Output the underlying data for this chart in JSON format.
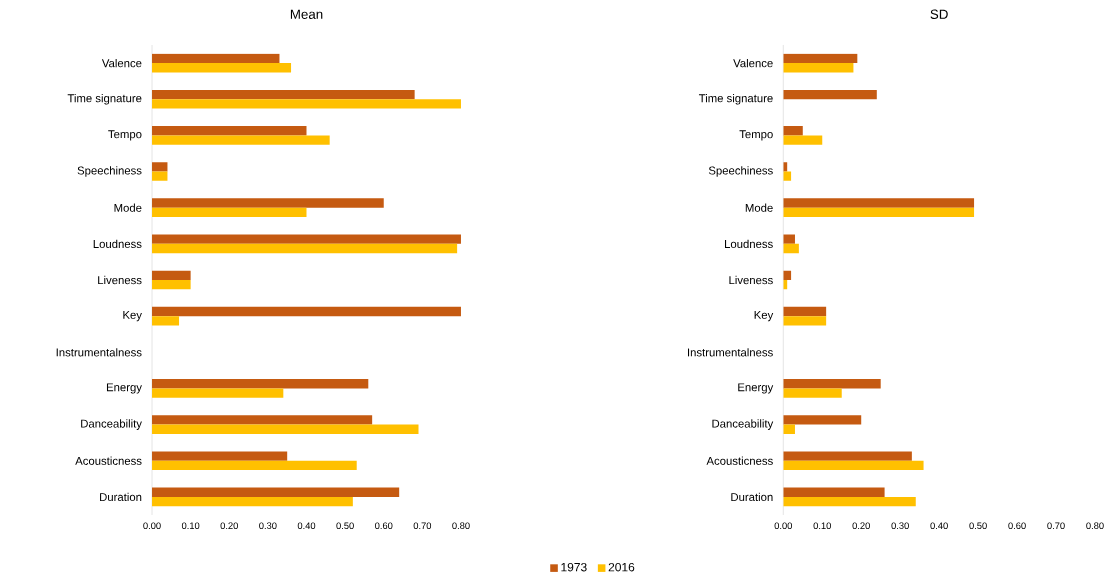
{
  "chart_data": [
    {
      "type": "bar",
      "title": "Mean",
      "orientation": "horizontal",
      "categories": [
        "Valence",
        "Time signature",
        "Tempo",
        "Speechiness",
        "Mode",
        "Loudness",
        "Liveness",
        "Key",
        "Instrumentalness",
        "Energy",
        "Danceability",
        "Acousticness",
        "Duration"
      ],
      "series": [
        {
          "name": "1973",
          "color": "#c55a11",
          "values": [
            0.33,
            0.68,
            0.4,
            0.04,
            0.6,
            0.8,
            0.1,
            0.8,
            0,
            0.56,
            0.57,
            0.35,
            0.64
          ]
        },
        {
          "name": "2016",
          "color": "#ffc000",
          "values": [
            0.36,
            0.8,
            0.46,
            0.04,
            0.4,
            0.79,
            0.1,
            0.07,
            0,
            0.34,
            0.69,
            0.53,
            0.52
          ]
        }
      ],
      "xlim": [
        0,
        0.8
      ],
      "xticks": [
        {
          "value": 0,
          "label": "0.00"
        },
        {
          "value": 0.1,
          "label": "0.10"
        },
        {
          "value": 0.2,
          "label": "0.20"
        },
        {
          "value": 0.3,
          "label": "0.30"
        },
        {
          "value": 0.4,
          "label": "0.40"
        },
        {
          "value": 0.5,
          "label": "0.50"
        },
        {
          "value": 0.6,
          "label": "0.60"
        },
        {
          "value": 0.7,
          "label": "0.70"
        },
        {
          "value": 0.8,
          "label": "0.80"
        }
      ],
      "legend": "bottom"
    },
    {
      "type": "bar",
      "title": "SD",
      "orientation": "horizontal",
      "categories": [
        "Valence",
        "Time signature",
        "Tempo",
        "Speechiness",
        "Mode",
        "Loudness",
        "Liveness",
        "Key",
        "Instrumentalness",
        "Energy",
        "Danceability",
        "Acousticness",
        "Duration"
      ],
      "series": [
        {
          "color": "#c55a11",
          "values": [
            0.19,
            0.24,
            0.05,
            0.01,
            0.49,
            0.03,
            0.02,
            0.11,
            0,
            0.25,
            0.2,
            0.33,
            0.26
          ]
        },
        {
          "color": "#ffc000",
          "values": [
            0.18,
            0,
            0.1,
            0.02,
            0.49,
            0.04,
            0.01,
            0.11,
            0,
            0.15,
            0.03,
            0.36,
            0.34
          ]
        }
      ],
      "xlim": [
        0,
        0.8
      ],
      "xticks": [
        {
          "value": 0,
          "label": "0.00"
        },
        {
          "value": 0.1,
          "label": "0.10"
        },
        {
          "value": 0.2,
          "label": "0.20"
        },
        {
          "value": 0.3,
          "label": "0.30"
        },
        {
          "value": 0.4,
          "label": "0.40"
        },
        {
          "value": 0.5,
          "label": "0.50"
        },
        {
          "value": 0.6,
          "label": "0.60"
        },
        {
          "value": 0.7,
          "label": "0.70"
        },
        {
          "value": 0.8,
          "label": "0.80"
        }
      ]
    }
  ]
}
